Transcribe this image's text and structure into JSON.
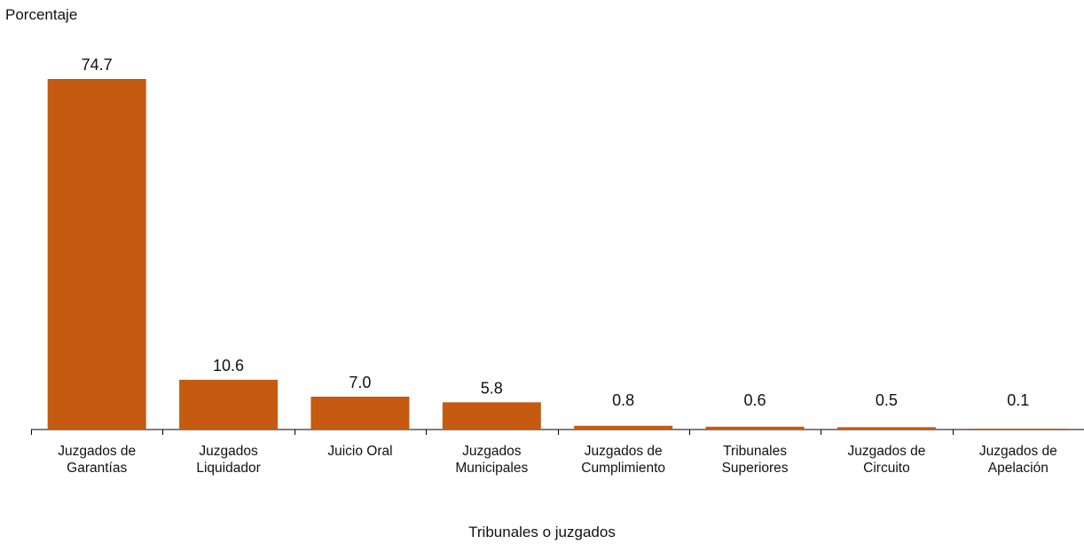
{
  "chart_data": {
    "type": "bar",
    "title": "",
    "ylabel": "Porcentaje",
    "xlabel": "Tribunales o juzgados",
    "categories": [
      [
        "Juzgados de",
        "Garantías"
      ],
      [
        "Juzgados",
        "Liquidador"
      ],
      [
        "Juicio Oral"
      ],
      [
        "Juzgados",
        "Municipales"
      ],
      [
        "Juzgados de",
        "Cumplimiento"
      ],
      [
        "Tribunales",
        "Superiores"
      ],
      [
        "Juzgados de",
        "Circuito"
      ],
      [
        "Juzgados de",
        "Apelación"
      ]
    ],
    "values": [
      74.7,
      10.6,
      7.0,
      5.8,
      0.8,
      0.6,
      0.5,
      0.1
    ],
    "value_labels": [
      "74.7",
      "10.6",
      "7.0",
      "5.8",
      "0.8",
      "0.6",
      "0.5",
      "0.1"
    ],
    "ylim": [
      0,
      74.7
    ],
    "grid": false,
    "bar_color": "#c55a11"
  }
}
